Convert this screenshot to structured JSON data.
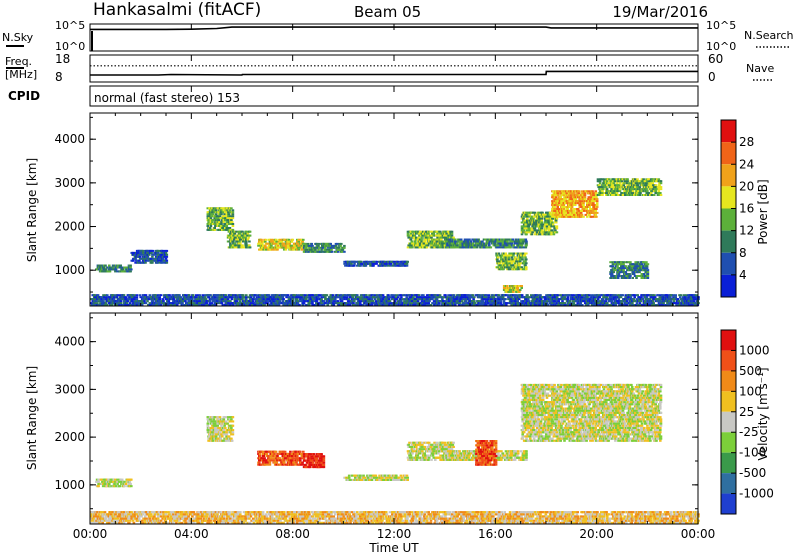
{
  "header": {
    "station": "Hankasalmi (fitACF)",
    "beam": "Beam 05",
    "date": "19/Mar/2016"
  },
  "noise_panel": {
    "left_label": "N.Sky",
    "right_label": "N.Search",
    "left_ticks": [
      "10^5",
      "10^0"
    ],
    "right_ticks": [
      "10^5",
      "10^0"
    ]
  },
  "freq_panel": {
    "left_label_1": "Freq.",
    "left_label_2": "[MHz]",
    "right_label": "Nave",
    "left_ticks": [
      "18",
      "8"
    ],
    "right_ticks": [
      "60",
      "0"
    ]
  },
  "cpid_panel": {
    "label": "CPID",
    "value": "normal (fast stereo) 153"
  },
  "axes": {
    "ylabel": "Slant Range [km]",
    "y_ticks": [
      "1000",
      "2000",
      "3000",
      "4000"
    ],
    "xlabel": "Time UT",
    "x_ticks": [
      "00:00",
      "04:00",
      "08:00",
      "12:00",
      "16:00",
      "20:00",
      "00:00"
    ]
  },
  "colorbars": {
    "power": {
      "label": "Power [dB]",
      "ticks": [
        "4",
        "8",
        "12",
        "16",
        "20",
        "24",
        "28"
      ],
      "colors": [
        "#0a1fd6",
        "#1f4fb0",
        "#2f7a5a",
        "#5cb03a",
        "#e6e61f",
        "#f0a21a",
        "#f06418",
        "#e01010"
      ]
    },
    "velocity": {
      "label": "Velocity [m s⁻¹]",
      "ticks": [
        "1000",
        "500",
        "100",
        "25",
        "-25",
        "-100",
        "-500",
        "-1000"
      ],
      "colors": [
        "#1f3fd0",
        "#2f6fa0",
        "#3a9a4a",
        "#7ccf3a",
        "#c8c8c4",
        "#f0c020",
        "#f08a18",
        "#f05018",
        "#e01010"
      ]
    }
  },
  "chart_data": [
    {
      "type": "line",
      "title": "Hankasalmi (fitACF)",
      "series": [
        {
          "name": "N.Sky",
          "x": [
            0,
            1,
            2,
            3,
            4,
            5,
            5.6,
            6,
            8,
            10,
            12,
            14,
            16,
            18,
            18.2,
            20,
            22,
            24
          ],
          "values": [
            20000,
            20000,
            20000,
            20000,
            22000,
            30000,
            60000,
            60000,
            60000,
            60000,
            60000,
            60000,
            60000,
            60000,
            40000,
            40000,
            40000,
            40000
          ]
        }
      ],
      "xlim": [
        0,
        24
      ]
    },
    {
      "type": "line",
      "series": [
        {
          "name": "Freq.",
          "x": [
            0,
            2.7,
            3.2,
            6,
            6.01,
            18,
            18.01,
            24
          ],
          "values": [
            10.5,
            10.5,
            10.7,
            10.5,
            10.7,
            10.7,
            12,
            12
          ]
        },
        {
          "name": "Nave",
          "x": [
            0,
            24
          ],
          "values": [
            38,
            38
          ]
        }
      ],
      "xlim": [
        0,
        24
      ]
    },
    {
      "type": "heatmap",
      "variable": "Power [dB]",
      "x": "Time UT (hours)",
      "y": "Slant Range [km]",
      "xlim": [
        0,
        24
      ],
      "ylim": [
        180,
        4600
      ],
      "scatter_bands": [
        {
          "t0": 0.2,
          "t1": 1.6,
          "r0": 950,
          "r1": 1100,
          "level": 2
        },
        {
          "t0": 1.6,
          "t1": 3.0,
          "r0": 1150,
          "r1": 1450,
          "level": 1
        },
        {
          "t0": 4.6,
          "t1": 5.6,
          "r0": 1900,
          "r1": 2400,
          "level": 3
        },
        {
          "t0": 5.4,
          "t1": 6.3,
          "r0": 1500,
          "r1": 1900,
          "level": 3
        },
        {
          "t0": 6.6,
          "t1": 8.4,
          "r0": 1450,
          "r1": 1700,
          "level": 4
        },
        {
          "t0": 8.4,
          "t1": 10.0,
          "r0": 1400,
          "r1": 1600,
          "level": 2
        },
        {
          "t0": 10.0,
          "t1": 12.5,
          "r0": 1080,
          "r1": 1200,
          "level": 1
        },
        {
          "t0": 12.5,
          "t1": 14.3,
          "r0": 1500,
          "r1": 1900,
          "level": 3
        },
        {
          "t0": 14.0,
          "t1": 17.2,
          "r0": 1500,
          "r1": 1700,
          "level": 2
        },
        {
          "t0": 16.0,
          "t1": 17.2,
          "r0": 1000,
          "r1": 1400,
          "level": 3
        },
        {
          "t0": 16.3,
          "t1": 17.0,
          "r0": 480,
          "r1": 620,
          "level": 4
        },
        {
          "t0": 17.0,
          "t1": 18.4,
          "r0": 1800,
          "r1": 2300,
          "level": 3
        },
        {
          "t0": 18.2,
          "t1": 20.0,
          "r0": 2200,
          "r1": 2800,
          "level": 5
        },
        {
          "t0": 20.0,
          "t1": 22.5,
          "r0": 2700,
          "r1": 3100,
          "level": 3
        },
        {
          "t0": 20.5,
          "t1": 22.0,
          "r0": 800,
          "r1": 1200,
          "level": 2
        },
        {
          "t0": 0.0,
          "t1": 24.0,
          "r0": 180,
          "r1": 420,
          "level": 1
        }
      ]
    },
    {
      "type": "heatmap",
      "variable": "Velocity [m s-1]",
      "x": "Time UT (hours)",
      "y": "Slant Range [km]",
      "xlim": [
        0,
        24
      ],
      "ylim": [
        180,
        4600
      ],
      "scatter_bands": [
        {
          "t0": 0.2,
          "t1": 1.6,
          "r0": 950,
          "r1": 1100,
          "level": 4
        },
        {
          "t0": 4.6,
          "t1": 5.6,
          "r0": 1900,
          "r1": 2400,
          "level": 4
        },
        {
          "t0": 6.6,
          "t1": 8.4,
          "r0": 1400,
          "r1": 1700,
          "level": 7
        },
        {
          "t0": 8.4,
          "t1": 9.2,
          "r0": 1350,
          "r1": 1650,
          "level": 8
        },
        {
          "t0": 10.0,
          "t1": 12.5,
          "r0": 1080,
          "r1": 1200,
          "level": 4
        },
        {
          "t0": 12.5,
          "t1": 14.3,
          "r0": 1500,
          "r1": 1900,
          "level": 4
        },
        {
          "t0": 14.0,
          "t1": 17.2,
          "r0": 1500,
          "r1": 1700,
          "level": 4
        },
        {
          "t0": 15.2,
          "t1": 16.0,
          "r0": 1400,
          "r1": 1900,
          "level": 7
        },
        {
          "t0": 17.0,
          "t1": 22.5,
          "r0": 1900,
          "r1": 3100,
          "level": 4
        },
        {
          "t0": 0.0,
          "t1": 24.0,
          "r0": 180,
          "r1": 420,
          "level": 5
        }
      ]
    }
  ]
}
